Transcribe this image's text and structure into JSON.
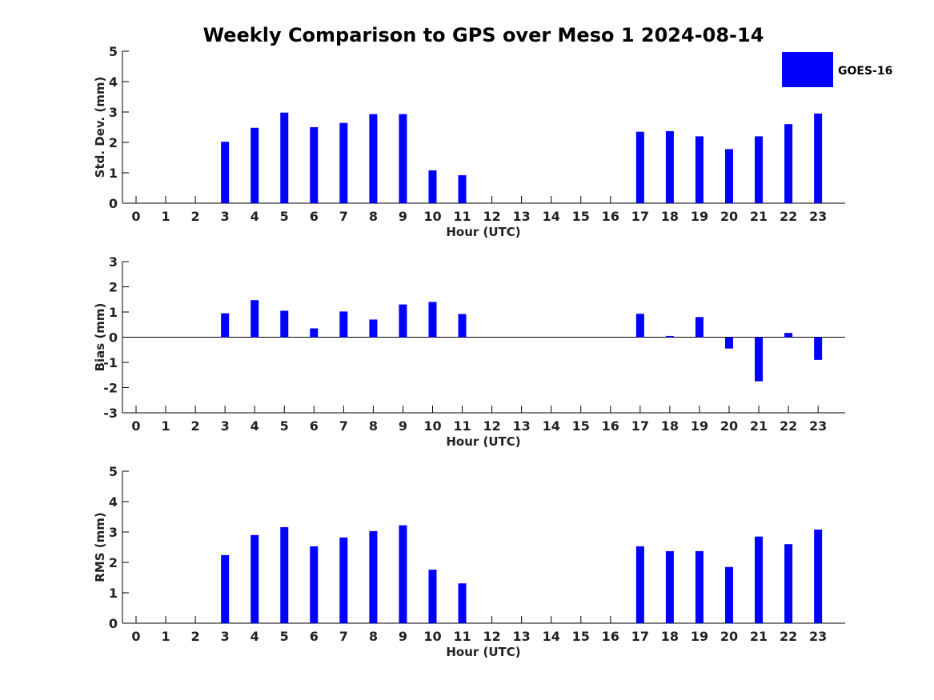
{
  "title": "Weekly Comparison to GPS over Meso 1 2024-08-14",
  "legend": {
    "label": "GOES-16",
    "color": "#0000ff"
  },
  "chart_data": [
    {
      "id": "stddev",
      "type": "bar",
      "ylabel": "Std. Dev. (mm)",
      "xlabel": "Hour (UTC)",
      "ylim": [
        0,
        5
      ],
      "yticks": [
        "0",
        "1",
        "2",
        "3",
        "4",
        "5"
      ],
      "categories": [
        "0",
        "1",
        "2",
        "3",
        "4",
        "5",
        "6",
        "7",
        "8",
        "9",
        "10",
        "11",
        "12",
        "13",
        "14",
        "15",
        "16",
        "17",
        "18",
        "19",
        "20",
        "21",
        "22",
        "23"
      ],
      "series": [
        {
          "name": "GOES-16",
          "values": [
            null,
            null,
            null,
            2.02,
            2.48,
            2.98,
            2.5,
            2.64,
            2.93,
            2.93,
            1.08,
            0.92,
            null,
            null,
            null,
            null,
            null,
            2.35,
            2.37,
            2.2,
            1.78,
            2.2,
            2.6,
            2.95
          ]
        }
      ]
    },
    {
      "id": "bias",
      "type": "bar",
      "ylabel": "Bias (mm)",
      "xlabel": "Hour (UTC)",
      "ylim": [
        -3,
        3
      ],
      "yticks": [
        "-3",
        "-2",
        "-1",
        "0",
        "1",
        "2",
        "3"
      ],
      "categories": [
        "0",
        "1",
        "2",
        "3",
        "4",
        "5",
        "6",
        "7",
        "8",
        "9",
        "10",
        "11",
        "12",
        "13",
        "14",
        "15",
        "16",
        "17",
        "18",
        "19",
        "20",
        "21",
        "22",
        "23"
      ],
      "series": [
        {
          "name": "GOES-16",
          "values": [
            null,
            null,
            null,
            0.95,
            1.47,
            1.05,
            0.35,
            1.02,
            0.7,
            1.3,
            1.4,
            0.92,
            null,
            null,
            null,
            null,
            null,
            0.93,
            0.05,
            0.8,
            -0.45,
            -1.75,
            0.17,
            -0.9
          ]
        }
      ]
    },
    {
      "id": "rms",
      "type": "bar",
      "ylabel": "RMS (mm)",
      "xlabel": "Hour (UTC)",
      "ylim": [
        0,
        5
      ],
      "yticks": [
        "0",
        "1",
        "2",
        "3",
        "4",
        "5"
      ],
      "categories": [
        "0",
        "1",
        "2",
        "3",
        "4",
        "5",
        "6",
        "7",
        "8",
        "9",
        "10",
        "11",
        "12",
        "13",
        "14",
        "15",
        "16",
        "17",
        "18",
        "19",
        "20",
        "21",
        "22",
        "23"
      ],
      "series": [
        {
          "name": "GOES-16",
          "values": [
            null,
            null,
            null,
            2.24,
            2.9,
            3.16,
            2.53,
            2.82,
            3.03,
            3.22,
            1.76,
            1.31,
            null,
            null,
            null,
            null,
            null,
            2.53,
            2.37,
            2.37,
            1.85,
            2.85,
            2.6,
            3.08
          ]
        }
      ]
    }
  ]
}
